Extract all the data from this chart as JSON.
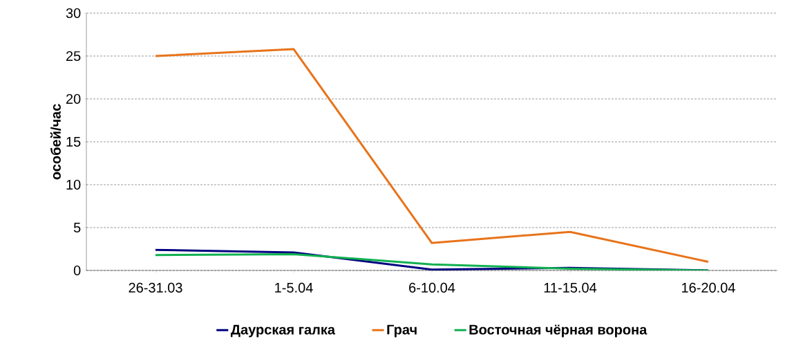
{
  "chart_data": {
    "type": "line",
    "ylabel": "особей/час",
    "categories": [
      "26-31.03",
      "1-5.04",
      "6-10.04",
      "11-15.04",
      "16-20.04"
    ],
    "series": [
      {
        "name": "Даурская галка",
        "color": "#000080",
        "values": [
          2.4,
          2.1,
          0.1,
          0.3,
          0.0
        ]
      },
      {
        "name": "Грач",
        "color": "#e8731a",
        "values": [
          25.0,
          25.8,
          3.2,
          4.5,
          1.0
        ]
      },
      {
        "name": "Восточная чёрная ворона",
        "color": "#10b050",
        "values": [
          1.8,
          1.9,
          0.7,
          0.2,
          0.0
        ]
      }
    ],
    "ylim": [
      0,
      30
    ],
    "yticks": [
      0,
      5,
      10,
      15,
      20,
      25,
      30
    ],
    "grid": "y",
    "legend": "bottom",
    "marker": "none",
    "line_style": "solid"
  }
}
